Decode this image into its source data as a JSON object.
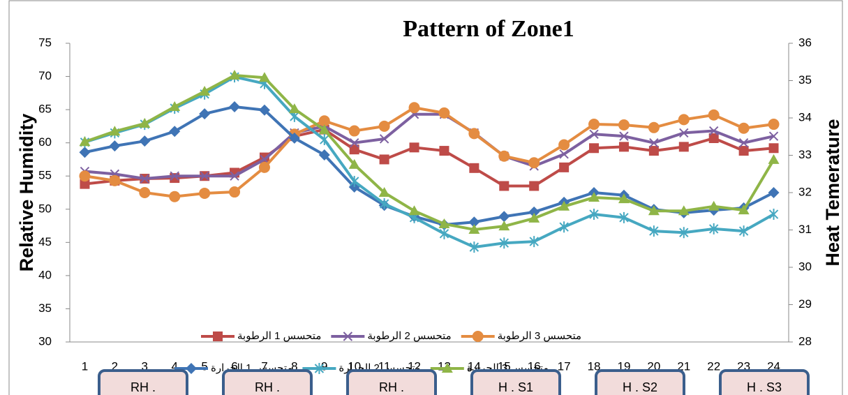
{
  "chart_data": {
    "type": "line",
    "title": "Pattern of Zone1",
    "y_label": "Relative Humidity",
    "y2_label": "Heat Temerature",
    "categories": [
      "1",
      "2",
      "3",
      "4",
      "5",
      "6",
      "7",
      "8",
      "9",
      "10",
      "11",
      "12",
      "13",
      "14",
      "15",
      "16",
      "17",
      "18",
      "19",
      "20",
      "21",
      "22",
      "23",
      "24"
    ],
    "ylim": [
      30,
      75
    ],
    "yticks": [
      30,
      35,
      40,
      45,
      50,
      55,
      60,
      65,
      70,
      75
    ],
    "y2lim": [
      28,
      36
    ],
    "y2ticks": [
      28,
      29,
      30,
      31,
      32,
      33,
      34,
      35,
      36
    ],
    "series": [
      {
        "name": "متحسس 1 الرطوبة",
        "color": "#be4b48",
        "marker": "square",
        "values": [
          53.8,
          54.3,
          54.6,
          54.7,
          55.0,
          55.5,
          57.8,
          61.0,
          62.0,
          59.0,
          57.5,
          59.3,
          58.8,
          56.2,
          53.5,
          53.5,
          56.3,
          59.2,
          59.4,
          58.8,
          59.4,
          60.7,
          58.8,
          59.2
        ]
      },
      {
        "name": "متحسس 2 الرطوبة",
        "color": "#7d60a0",
        "marker": "x",
        "values": [
          55.7,
          55.3,
          54.6,
          55.0,
          55.0,
          55.0,
          57.5,
          61.5,
          62.5,
          60.0,
          60.6,
          64.3,
          64.3,
          61.5,
          58.0,
          56.5,
          58.3,
          61.3,
          61.0,
          60.0,
          61.5,
          61.8,
          60.0,
          61.0
        ]
      },
      {
        "name": "متحسس 3 الرطوبة",
        "color": "#e48c41",
        "marker": "circle",
        "values": [
          55.0,
          54.3,
          52.5,
          51.9,
          52.4,
          52.6,
          56.3,
          61.3,
          63.3,
          61.8,
          62.5,
          65.3,
          64.5,
          61.4,
          58.0,
          57.0,
          59.7,
          62.8,
          62.7,
          62.3,
          63.5,
          64.2,
          62.2,
          62.8
        ]
      },
      {
        "name": "متحسس 1 الحرارة",
        "color": "#3f74b5",
        "marker": "diamond",
        "axis": "y2",
        "values": [
          33.08,
          33.25,
          33.38,
          33.64,
          34.11,
          34.3,
          34.21,
          33.46,
          33.01,
          32.15,
          31.66,
          31.36,
          31.14,
          31.21,
          31.36,
          31.48,
          31.74,
          32.0,
          31.93,
          31.55,
          31.46,
          31.53,
          31.59,
          32.0
        ]
      },
      {
        "name": "متحسس 2 الحرارة",
        "color": "#46a8c1",
        "marker": "asterisk",
        "axis": "y2",
        "values": [
          33.35,
          33.6,
          33.83,
          34.26,
          34.64,
          35.1,
          34.92,
          34.04,
          33.42,
          32.3,
          31.7,
          31.33,
          30.9,
          30.54,
          30.65,
          30.69,
          31.08,
          31.42,
          31.33,
          30.97,
          30.93,
          31.03,
          30.97,
          31.42
        ]
      },
      {
        "name": "متحسس 3 الحرارة",
        "color": "#8fb547",
        "marker": "triangle",
        "axis": "y2",
        "values": [
          33.36,
          33.64,
          33.85,
          34.3,
          34.71,
          35.14,
          35.08,
          34.24,
          33.68,
          32.75,
          32.0,
          31.51,
          31.16,
          31.01,
          31.1,
          31.31,
          31.63,
          31.87,
          31.83,
          31.51,
          31.51,
          31.63,
          31.53,
          32.88
        ]
      }
    ]
  },
  "overlay_boxes": [
    "RH .",
    "RH .",
    "RH .",
    "H . S1",
    "H . S2",
    "H . S3"
  ]
}
